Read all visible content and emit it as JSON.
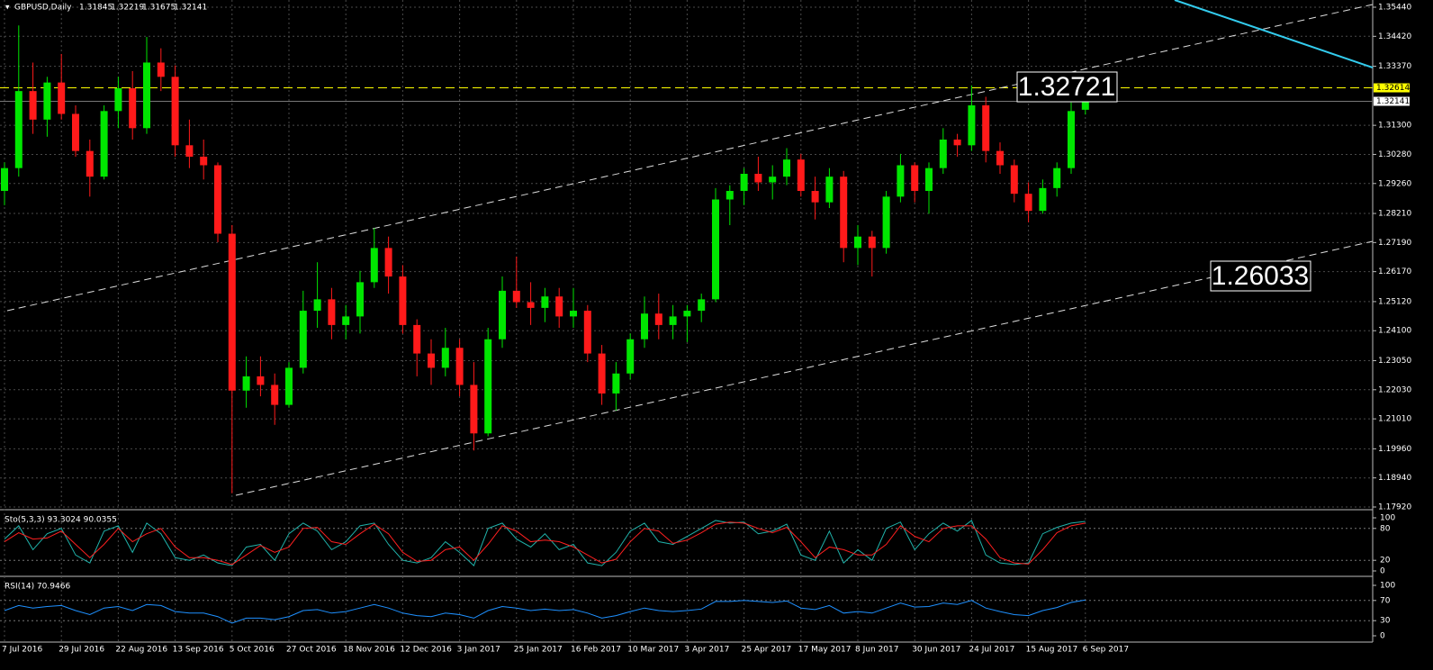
{
  "chart_data": [
    {
      "type": "candlestick",
      "title": "GBPUSD,Daily",
      "categories": [
        "7 Jul 2016",
        null,
        null,
        null,
        "29 Jul 2016",
        null,
        null,
        null,
        "22 Aug 2016",
        null,
        null,
        null,
        "13 Sep 2016",
        null,
        null,
        null,
        "5 Oct 2016",
        null,
        null,
        null,
        "27 Oct 2016",
        null,
        null,
        null,
        "18 Nov 2016",
        null,
        null,
        null,
        "12 Dec 2016",
        null,
        null,
        null,
        "3 Jan 2017",
        null,
        null,
        null,
        "25 Jan 2017",
        null,
        null,
        null,
        "16 Feb 2017",
        null,
        null,
        null,
        "10 Mar 2017",
        null,
        null,
        null,
        "3 Apr 2017",
        null,
        null,
        null,
        "25 Apr 2017",
        null,
        null,
        null,
        "17 May 2017",
        null,
        null,
        null,
        "8 Jun 2017",
        null,
        null,
        null,
        "30 Jun 2017",
        null,
        null,
        null,
        "24 Jul 2017",
        null,
        null,
        null,
        "15 Aug 2017",
        null,
        null,
        null,
        "6 Sep 2017"
      ],
      "open": [
        1.29,
        1.298,
        1.325,
        1.315,
        1.328,
        1.317,
        1.304,
        1.295,
        1.318,
        1.326,
        1.312,
        1.335,
        1.33,
        1.306,
        1.302,
        1.299,
        1.275,
        1.22,
        1.225,
        1.222,
        1.215,
        1.228,
        1.248,
        1.252,
        1.243,
        1.246,
        1.258,
        1.27,
        1.26,
        1.243,
        1.233,
        1.228,
        1.235,
        1.222,
        1.205,
        1.238,
        1.255,
        1.251,
        1.249,
        1.253,
        1.246,
        1.248,
        1.233,
        1.219,
        1.226,
        1.238,
        1.247,
        1.243,
        1.246,
        1.248,
        1.252,
        1.287,
        1.29,
        1.296,
        1.293,
        1.295,
        1.301,
        1.29,
        1.286,
        1.295,
        1.27,
        1.274,
        1.27,
        1.288,
        1.299,
        1.29,
        1.298,
        1.308,
        1.306,
        1.32,
        1.304,
        1.299,
        1.289,
        1.283,
        1.291,
        1.298,
        1.31845
      ],
      "high": [
        1.3,
        1.348,
        1.335,
        1.33,
        1.338,
        1.32,
        1.308,
        1.32,
        1.33,
        1.332,
        1.344,
        1.34,
        1.334,
        1.315,
        1.308,
        1.3,
        1.278,
        1.232,
        1.232,
        1.226,
        1.23,
        1.255,
        1.265,
        1.256,
        1.25,
        1.262,
        1.277,
        1.274,
        1.264,
        1.245,
        1.238,
        1.242,
        1.238,
        1.23,
        1.242,
        1.26,
        1.267,
        1.258,
        1.256,
        1.256,
        1.256,
        1.25,
        1.236,
        1.23,
        1.24,
        1.253,
        1.254,
        1.25,
        1.25,
        1.254,
        1.291,
        1.292,
        1.298,
        1.302,
        1.299,
        1.305,
        1.303,
        1.295,
        1.298,
        1.297,
        1.278,
        1.276,
        1.29,
        1.303,
        1.3,
        1.3,
        1.312,
        1.31,
        1.327,
        1.323,
        1.307,
        1.301,
        1.293,
        1.294,
        1.3,
        1.321,
        1.32219
      ],
      "low": [
        1.285,
        1.295,
        1.31,
        1.309,
        1.315,
        1.302,
        1.288,
        1.294,
        1.312,
        1.308,
        1.31,
        1.325,
        1.302,
        1.298,
        1.294,
        1.272,
        1.184,
        1.214,
        1.218,
        1.208,
        1.214,
        1.226,
        1.242,
        1.238,
        1.238,
        1.24,
        1.256,
        1.254,
        1.24,
        1.225,
        1.222,
        1.225,
        1.218,
        1.199,
        1.204,
        1.235,
        1.249,
        1.243,
        1.244,
        1.242,
        1.242,
        1.23,
        1.215,
        1.213,
        1.224,
        1.235,
        1.238,
        1.238,
        1.237,
        1.244,
        1.251,
        1.278,
        1.285,
        1.29,
        1.287,
        1.292,
        1.288,
        1.28,
        1.284,
        1.265,
        1.264,
        1.26,
        1.268,
        1.286,
        1.286,
        1.282,
        1.296,
        1.302,
        1.304,
        1.3,
        1.296,
        1.286,
        1.279,
        1.282,
        1.288,
        1.296,
        1.31675
      ],
      "close": [
        1.298,
        1.325,
        1.315,
        1.328,
        1.317,
        1.304,
        1.295,
        1.318,
        1.326,
        1.312,
        1.335,
        1.33,
        1.306,
        1.302,
        1.299,
        1.275,
        1.22,
        1.225,
        1.222,
        1.215,
        1.228,
        1.248,
        1.252,
        1.243,
        1.246,
        1.258,
        1.27,
        1.26,
        1.243,
        1.233,
        1.228,
        1.235,
        1.222,
        1.205,
        1.238,
        1.255,
        1.251,
        1.249,
        1.253,
        1.246,
        1.248,
        1.233,
        1.219,
        1.226,
        1.238,
        1.247,
        1.243,
        1.246,
        1.248,
        1.252,
        1.287,
        1.29,
        1.296,
        1.293,
        1.295,
        1.301,
        1.29,
        1.286,
        1.295,
        1.27,
        1.274,
        1.27,
        1.288,
        1.299,
        1.29,
        1.298,
        1.308,
        1.306,
        1.32,
        1.304,
        1.299,
        1.289,
        1.283,
        1.291,
        1.298,
        1.318,
        1.32141
      ],
      "up_color": "#00e600",
      "down_color": "#ff1a1a",
      "ylim": [
        1.1792,
        1.3544
      ],
      "yticks": [
        {
          "value": 1.3544,
          "label": "1.35440"
        },
        {
          "value": 1.3442,
          "label": "1.34420"
        },
        {
          "value": 1.3337,
          "label": "1.33370"
        },
        {
          "value": 1.313,
          "label": "1.31300"
        },
        {
          "value": 1.3028,
          "label": "1.30280"
        },
        {
          "value": 1.2926,
          "label": "1.29260"
        },
        {
          "value": 1.2821,
          "label": "1.28210"
        },
        {
          "value": 1.2719,
          "label": "1.27190"
        },
        {
          "value": 1.2617,
          "label": "1.26170"
        },
        {
          "value": 1.2512,
          "label": "1.25120"
        },
        {
          "value": 1.241,
          "label": "1.24100"
        },
        {
          "value": 1.2305,
          "label": "1.23050"
        },
        {
          "value": 1.2203,
          "label": "1.22030"
        },
        {
          "value": 1.2101,
          "label": "1.21010"
        },
        {
          "value": 1.1996,
          "label": "1.19960"
        },
        {
          "value": 1.1894,
          "label": "1.18940"
        },
        {
          "value": 1.1792,
          "label": "1.17920"
        }
      ],
      "price_markers": [
        {
          "value": 1.32614,
          "label": "1.32614",
          "color": "#ffff00"
        },
        {
          "value": 1.32141,
          "label": "1.32141",
          "color": "#ffffff"
        }
      ],
      "annotations": [
        1.32721,
        1.26033
      ],
      "grid": true
    },
    {
      "type": "line",
      "title": "Sto(5,3,3) 93.3024 90.0355",
      "series": [
        {
          "color": "#20b2aa",
          "values": [
            60,
            85,
            40,
            70,
            80,
            30,
            15,
            75,
            85,
            35,
            90,
            70,
            25,
            20,
            30,
            15,
            10,
            45,
            50,
            20,
            70,
            90,
            75,
            40,
            55,
            85,
            90,
            50,
            20,
            15,
            25,
            55,
            35,
            10,
            80,
            90,
            60,
            45,
            70,
            40,
            50,
            15,
            10,
            35,
            75,
            90,
            55,
            50,
            65,
            80,
            95,
            90,
            92,
            70,
            75,
            88,
            30,
            20,
            75,
            15,
            40,
            20,
            80,
            92,
            40,
            70,
            90,
            75,
            95,
            30,
            15,
            12,
            15,
            70,
            82,
            90,
            93.3024
          ]
        },
        {
          "color": "#ff2020",
          "values": [
            55,
            72,
            60,
            62,
            75,
            50,
            25,
            50,
            80,
            55,
            70,
            80,
            45,
            25,
            25,
            20,
            12,
            30,
            48,
            35,
            45,
            80,
            82,
            55,
            50,
            70,
            88,
            70,
            35,
            18,
            20,
            40,
            45,
            20,
            50,
            85,
            75,
            55,
            58,
            55,
            45,
            30,
            15,
            22,
            55,
            80,
            75,
            52,
            58,
            72,
            88,
            92,
            90,
            80,
            72,
            82,
            55,
            25,
            45,
            40,
            30,
            30,
            50,
            85,
            65,
            55,
            80,
            85,
            85,
            60,
            25,
            15,
            13,
            40,
            72,
            85,
            90.0355
          ]
        }
      ],
      "ylim": [
        0,
        100
      ],
      "yticks": [
        100,
        80,
        20,
        0
      ],
      "levels": [
        80,
        20
      ]
    },
    {
      "type": "line",
      "title": "RSI(14) 70.9466",
      "series": [
        {
          "color": "#1e90ff",
          "values": [
            50,
            60,
            55,
            58,
            60,
            50,
            42,
            55,
            58,
            50,
            62,
            60,
            48,
            45,
            45,
            38,
            25,
            35,
            35,
            32,
            38,
            50,
            52,
            45,
            48,
            55,
            62,
            55,
            45,
            40,
            38,
            45,
            42,
            35,
            50,
            58,
            55,
            50,
            53,
            50,
            52,
            45,
            35,
            40,
            48,
            55,
            50,
            48,
            50,
            53,
            68,
            68,
            70,
            68,
            66,
            69,
            55,
            52,
            60,
            45,
            48,
            45,
            55,
            65,
            57,
            58,
            65,
            62,
            70,
            55,
            48,
            42,
            40,
            50,
            56,
            66,
            70.9466
          ]
        }
      ],
      "ylim": [
        0,
        100
      ],
      "yticks": [
        100,
        70,
        30,
        0
      ],
      "levels": [
        70,
        30
      ]
    }
  ]
}
